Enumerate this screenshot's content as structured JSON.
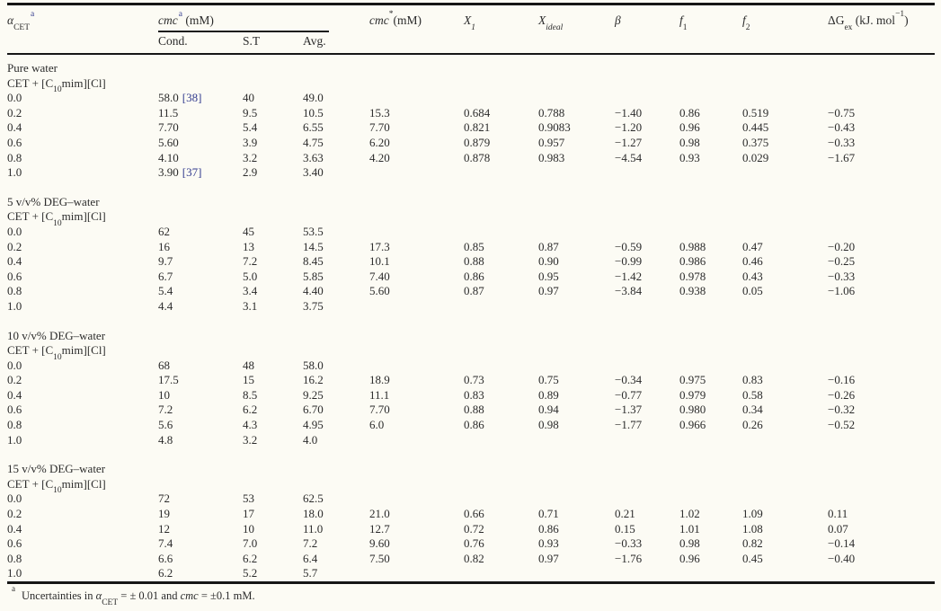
{
  "colors": {
    "background": "#fcfbf4",
    "text": "#2b2b2b",
    "rule": "#161616",
    "citation_link": "#323b8e"
  },
  "header": {
    "alpha": {
      "base": "α",
      "sub": "CET",
      "marker": "a"
    },
    "cmc_group": {
      "base": "cmc",
      "marker": "a",
      "unit": " (mM)"
    },
    "sub_cols": {
      "cond": "Cond.",
      "st": "S.T",
      "avg": "Avg."
    },
    "cmcstar": {
      "base": "cmc",
      "star": "*",
      "unit": "(mM)"
    },
    "x1": {
      "base": "X",
      "sub": "1"
    },
    "xideal": {
      "base": "X",
      "sub": "ideal"
    },
    "beta": {
      "base": "β"
    },
    "f1": {
      "base": "f",
      "sub": "1"
    },
    "f2": {
      "base": "f",
      "sub": "2"
    },
    "dgex": {
      "pre": "ΔG",
      "sub": "ex",
      "mid": " (kJ. mol",
      "sup": "−1",
      "post": ")"
    }
  },
  "system": {
    "pre": "CET + [C",
    "sub": "10",
    "post": "mim][Cl]"
  },
  "sections": [
    {
      "title": "Pure water",
      "rows": [
        {
          "alpha": "0.0",
          "cond": "58.0",
          "cond_ref": "[38]",
          "st": "40",
          "avg": "49.0"
        },
        {
          "alpha": "0.2",
          "cond": "11.5",
          "st": "9.5",
          "avg": "10.5",
          "cmcstar": "15.3",
          "x1": "0.684",
          "xideal": "0.788",
          "beta": "−1.40",
          "f1": "0.86",
          "f2": "0.519",
          "dgex": "−0.75"
        },
        {
          "alpha": "0.4",
          "cond": "7.70",
          "st": "5.4",
          "avg": "6.55",
          "cmcstar": "7.70",
          "x1": "0.821",
          "xideal": "0.9083",
          "beta": "−1.20",
          "f1": "0.96",
          "f2": "0.445",
          "dgex": "−0.43"
        },
        {
          "alpha": "0.6",
          "cond": "5.60",
          "st": "3.9",
          "avg": "4.75",
          "cmcstar": "6.20",
          "x1": "0.879",
          "xideal": "0.957",
          "beta": "−1.27",
          "f1": "0.98",
          "f2": "0.375",
          "dgex": "−0.33"
        },
        {
          "alpha": "0.8",
          "cond": "4.10",
          "st": "3.2",
          "avg": "3.63",
          "cmcstar": "4.20",
          "x1": "0.878",
          "xideal": "0.983",
          "beta": "−4.54",
          "f1": "0.93",
          "f2": "0.029",
          "dgex": "−1.67"
        },
        {
          "alpha": "1.0",
          "cond": "3.90",
          "cond_ref": "[37]",
          "st": "2.9",
          "avg": "3.40"
        }
      ]
    },
    {
      "title": "5 v/v% DEG–water",
      "rows": [
        {
          "alpha": "0.0",
          "cond": "62",
          "st": "45",
          "avg": "53.5"
        },
        {
          "alpha": "0.2",
          "cond": "16",
          "st": "13",
          "avg": "14.5",
          "cmcstar": "17.3",
          "x1": "0.85",
          "xideal": "0.87",
          "beta": "−0.59",
          "f1": "0.988",
          "f2": "0.47",
          "dgex": "−0.20"
        },
        {
          "alpha": "0.4",
          "cond": "9.7",
          "st": "7.2",
          "avg": "8.45",
          "cmcstar": "10.1",
          "x1": "0.88",
          "xideal": "0.90",
          "beta": "−0.99",
          "f1": "0.986",
          "f2": "0.46",
          "dgex": "−0.25"
        },
        {
          "alpha": "0.6",
          "cond": "6.7",
          "st": "5.0",
          "avg": "5.85",
          "cmcstar": "7.40",
          "x1": "0.86",
          "xideal": "0.95",
          "beta": "−1.42",
          "f1": "0.978",
          "f2": "0.43",
          "dgex": "−0.33"
        },
        {
          "alpha": "0.8",
          "cond": "5.4",
          "st": "3.4",
          "avg": "4.40",
          "cmcstar": "5.60",
          "x1": "0.87",
          "xideal": "0.97",
          "beta": "−3.84",
          "f1": "0.938",
          "f2": "0.05",
          "dgex": "−1.06"
        },
        {
          "alpha": "1.0",
          "cond": "4.4",
          "st": "3.1",
          "avg": "3.75"
        }
      ]
    },
    {
      "title": "10 v/v% DEG–water",
      "rows": [
        {
          "alpha": "0.0",
          "cond": "68",
          "st": "48",
          "avg": "58.0"
        },
        {
          "alpha": "0.2",
          "cond": "17.5",
          "st": "15",
          "avg": "16.2",
          "cmcstar": "18.9",
          "x1": "0.73",
          "xideal": "0.75",
          "beta": "−0.34",
          "f1": "0.975",
          "f2": "0.83",
          "dgex": "−0.16"
        },
        {
          "alpha": "0.4",
          "cond": "10",
          "st": "8.5",
          "avg": "9.25",
          "cmcstar": "11.1",
          "x1": "0.83",
          "xideal": "0.89",
          "beta": "−0.77",
          "f1": "0.979",
          "f2": "0.58",
          "dgex": "−0.26"
        },
        {
          "alpha": "0.6",
          "cond": "7.2",
          "st": "6.2",
          "avg": "6.70",
          "cmcstar": "7.70",
          "x1": "0.88",
          "xideal": "0.94",
          "beta": "−1.37",
          "f1": "0.980",
          "f2": "0.34",
          "dgex": "−0.32"
        },
        {
          "alpha": "0.8",
          "cond": "5.6",
          "st": "4.3",
          "avg": "4.95",
          "cmcstar": "6.0",
          "x1": "0.86",
          "xideal": "0.98",
          "beta": "−1.77",
          "f1": "0.966",
          "f2": "0.26",
          "dgex": "−0.52"
        },
        {
          "alpha": "1.0",
          "cond": "4.8",
          "st": "3.2",
          "avg": "4.0"
        }
      ]
    },
    {
      "title": "15 v/v% DEG–water",
      "rows": [
        {
          "alpha": "0.0",
          "cond": "72",
          "st": "53",
          "avg": "62.5"
        },
        {
          "alpha": "0.2",
          "cond": "19",
          "st": "17",
          "avg": "18.0",
          "cmcstar": "21.0",
          "x1": "0.66",
          "xideal": "0.71",
          "beta": "0.21",
          "f1": "1.02",
          "f2": "1.09",
          "dgex": "0.11"
        },
        {
          "alpha": "0.4",
          "cond": "12",
          "st": "10",
          "avg": "11.0",
          "cmcstar": "12.7",
          "x1": "0.72",
          "xideal": "0.86",
          "beta": "0.15",
          "f1": "1.01",
          "f2": "1.08",
          "dgex": "0.07"
        },
        {
          "alpha": "0.6",
          "cond": "7.4",
          "st": "7.0",
          "avg": "7.2",
          "cmcstar": "9.60",
          "x1": "0.76",
          "xideal": "0.93",
          "beta": "−0.33",
          "f1": "0.98",
          "f2": "0.82",
          "dgex": "−0.14"
        },
        {
          "alpha": "0.8",
          "cond": "6.6",
          "st": "6.2",
          "avg": "6.4",
          "cmcstar": "7.50",
          "x1": "0.82",
          "xideal": "0.97",
          "beta": "−1.76",
          "f1": "0.96",
          "f2": "0.45",
          "dgex": "−0.40"
        },
        {
          "alpha": "1.0",
          "cond": "6.2",
          "st": "5.2",
          "avg": "5.7"
        }
      ]
    }
  ],
  "footnote": {
    "marker": "a",
    "pre": "Uncertainties in ",
    "alpha": "α",
    "alpha_sub": "CET",
    "mid": " = ± 0.01 and ",
    "cmc": "cmc",
    "post": " = ±0.1 mM."
  }
}
